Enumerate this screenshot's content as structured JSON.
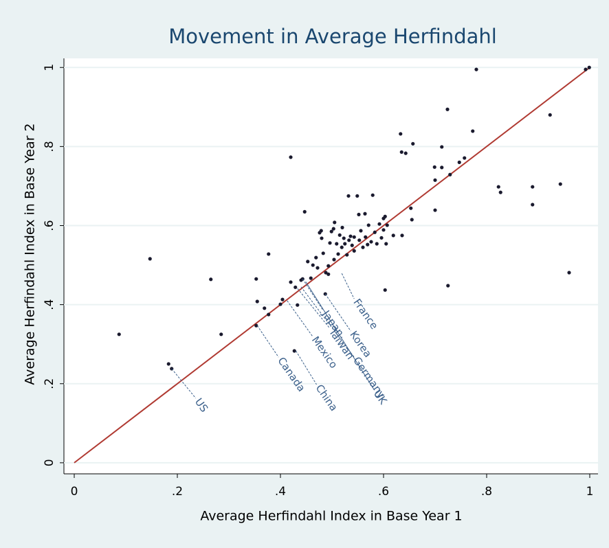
{
  "chart_data": {
    "type": "scatter",
    "title": "Movement in Average Herfindahl",
    "x_label": "Average Herfindahl Index in Base Year 1",
    "y_label": "Average Herfindahl Index in Base Year 2",
    "xlim": [
      -0.02,
      1.016
    ],
    "ylim": [
      -0.028,
      1.023
    ],
    "xticks": [
      0,
      {
        "value": 0.2,
        "label": ".2"
      },
      {
        "value": 0.4,
        "label": ".4"
      },
      {
        "value": 0.6,
        "label": ".6"
      },
      {
        "value": 0.8,
        "label": ".8"
      },
      1
    ],
    "yticks": [
      0,
      {
        "value": 0.2,
        "label": ".2"
      },
      {
        "value": 0.4,
        "label": ".4"
      },
      {
        "value": 0.6,
        "label": ".6"
      },
      {
        "value": 0.8,
        "label": ".8"
      },
      1
    ],
    "grid": true,
    "color": "#1a1a2e",
    "x": [
      0.087,
      0.147,
      0.183,
      0.189,
      0.265,
      0.285,
      0.353,
      0.355,
      0.353,
      0.369,
      0.377,
      0.377,
      0.4,
      0.404,
      0.42,
      0.42,
      0.427,
      0.429,
      0.433,
      0.44,
      0.443,
      0.447,
      0.453,
      0.459,
      0.463,
      0.469,
      0.472,
      0.476,
      0.479,
      0.48,
      0.483,
      0.487,
      0.488,
      0.493,
      0.493,
      0.496,
      0.499,
      0.503,
      0.505,
      0.504,
      0.509,
      0.512,
      0.515,
      0.519,
      0.52,
      0.523,
      0.525,
      0.529,
      0.532,
      0.533,
      0.536,
      0.539,
      0.543,
      0.543,
      0.549,
      0.552,
      0.553,
      0.556,
      0.56,
      0.564,
      0.565,
      0.569,
      0.571,
      0.576,
      0.579,
      0.583,
      0.587,
      0.592,
      0.596,
      0.6,
      0.6,
      0.603,
      0.603,
      0.605,
      0.607,
      0.619,
      0.633,
      0.635,
      0.636,
      0.643,
      0.653,
      0.655,
      0.657,
      0.699,
      0.7,
      0.7,
      0.713,
      0.713,
      0.724,
      0.725,
      0.729,
      0.747,
      0.757,
      0.773,
      0.78,
      0.823,
      0.827,
      0.889,
      0.889,
      0.923,
      0.943,
      0.96,
      0.992,
      0.999
    ],
    "y": [
      0.325,
      0.516,
      0.25,
      0.238,
      0.464,
      0.325,
      0.465,
      0.408,
      0.347,
      0.391,
      0.375,
      0.528,
      0.401,
      0.413,
      0.773,
      0.457,
      0.283,
      0.444,
      0.399,
      0.462,
      0.465,
      0.635,
      0.509,
      0.467,
      0.5,
      0.519,
      0.493,
      0.582,
      0.587,
      0.568,
      0.53,
      0.427,
      0.481,
      0.498,
      0.477,
      0.556,
      0.585,
      0.592,
      0.608,
      0.514,
      0.554,
      0.528,
      0.576,
      0.545,
      0.595,
      0.568,
      0.554,
      0.526,
      0.675,
      0.563,
      0.573,
      0.55,
      0.571,
      0.536,
      0.675,
      0.628,
      0.563,
      0.587,
      0.545,
      0.63,
      0.571,
      0.552,
      0.601,
      0.559,
      0.677,
      0.583,
      0.554,
      0.604,
      0.569,
      0.618,
      0.589,
      0.623,
      0.437,
      0.554,
      0.601,
      0.575,
      0.832,
      0.786,
      0.575,
      0.783,
      0.644,
      0.615,
      0.807,
      0.748,
      0.715,
      0.639,
      0.799,
      0.747,
      0.894,
      0.448,
      0.729,
      0.76,
      0.771,
      0.839,
      0.995,
      0.698,
      0.684,
      0.698,
      0.653,
      0.88,
      0.705,
      0.481,
      0.995,
      1.0
    ],
    "labeled_points": [
      {
        "name": "US",
        "x": 0.189,
        "y": 0.238
      },
      {
        "name": "Canada",
        "x": 0.355,
        "y": 0.347
      },
      {
        "name": "Mexico",
        "x": 0.413,
        "y": 0.41
      },
      {
        "name": "China",
        "x": 0.43,
        "y": 0.283
      },
      {
        "name": "Taiwan",
        "x": 0.433,
        "y": 0.441
      },
      {
        "name": "Japan",
        "x": 0.443,
        "y": 0.465
      },
      {
        "name": "Germany",
        "x": 0.44,
        "y": 0.445
      },
      {
        "name": "Korea",
        "x": 0.487,
        "y": 0.427
      },
      {
        "name": "UK",
        "x": 0.449,
        "y": 0.458
      },
      {
        "name": "France",
        "x": 0.519,
        "y": 0.479
      }
    ],
    "label_color": "#3a5f8a",
    "fit_line": {
      "x": [
        0,
        1
      ],
      "y": [
        0,
        1
      ],
      "color": "#b03a32"
    }
  }
}
